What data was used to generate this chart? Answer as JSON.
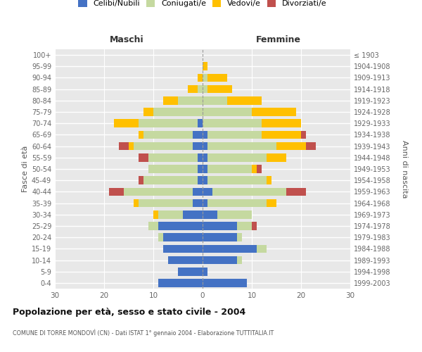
{
  "age_groups": [
    "0-4",
    "5-9",
    "10-14",
    "15-19",
    "20-24",
    "25-29",
    "30-34",
    "35-39",
    "40-44",
    "45-49",
    "50-54",
    "55-59",
    "60-64",
    "65-69",
    "70-74",
    "75-79",
    "80-84",
    "85-89",
    "90-94",
    "95-99",
    "100+"
  ],
  "birth_years": [
    "1999-2003",
    "1994-1998",
    "1989-1993",
    "1984-1988",
    "1979-1983",
    "1974-1978",
    "1969-1973",
    "1964-1968",
    "1959-1963",
    "1954-1958",
    "1949-1953",
    "1944-1948",
    "1939-1943",
    "1934-1938",
    "1929-1933",
    "1924-1928",
    "1919-1923",
    "1914-1918",
    "1909-1913",
    "1904-1908",
    "≤ 1903"
  ],
  "males": {
    "celibi": [
      9,
      5,
      7,
      8,
      8,
      9,
      4,
      2,
      2,
      1,
      1,
      1,
      2,
      2,
      1,
      0,
      0,
      0,
      0,
      0,
      0
    ],
    "coniugati": [
      0,
      0,
      0,
      0,
      1,
      2,
      5,
      11,
      14,
      11,
      10,
      10,
      12,
      10,
      12,
      10,
      5,
      1,
      0,
      0,
      0
    ],
    "vedovi": [
      0,
      0,
      0,
      0,
      0,
      0,
      1,
      1,
      0,
      0,
      0,
      0,
      1,
      1,
      5,
      2,
      3,
      2,
      1,
      0,
      0
    ],
    "divorziati": [
      0,
      0,
      0,
      0,
      0,
      0,
      0,
      0,
      3,
      1,
      0,
      2,
      2,
      0,
      0,
      0,
      0,
      0,
      0,
      0,
      0
    ]
  },
  "females": {
    "nubili": [
      9,
      1,
      7,
      11,
      7,
      7,
      3,
      1,
      2,
      1,
      1,
      1,
      1,
      1,
      0,
      0,
      0,
      0,
      0,
      0,
      0
    ],
    "coniugate": [
      0,
      0,
      1,
      2,
      1,
      3,
      7,
      12,
      15,
      12,
      9,
      12,
      14,
      11,
      12,
      10,
      5,
      1,
      1,
      0,
      0
    ],
    "vedove": [
      0,
      0,
      0,
      0,
      0,
      0,
      0,
      2,
      0,
      1,
      1,
      4,
      6,
      8,
      8,
      9,
      7,
      5,
      4,
      1,
      0
    ],
    "divorziate": [
      0,
      0,
      0,
      0,
      0,
      1,
      0,
      0,
      4,
      0,
      1,
      0,
      2,
      1,
      0,
      0,
      0,
      0,
      0,
      0,
      0
    ]
  },
  "colors": {
    "celibi": "#4472c4",
    "coniugati": "#c5d9a0",
    "vedovi": "#ffc000",
    "divorziati": "#c0504d"
  },
  "title": "Popolazione per età, sesso e stato civile - 2004",
  "subtitle": "COMUNE DI TORRE MONDOVÌ (CN) - Dati ISTAT 1° gennaio 2004 - Elaborazione TUTTITALIA.IT",
  "xlabel_left": "Maschi",
  "xlabel_right": "Femmine",
  "ylabel_left": "Fasce di età",
  "ylabel_right": "Anni di nascita",
  "xlim": 30,
  "legend_labels": [
    "Celibi/Nubili",
    "Coniugati/e",
    "Vedovi/e",
    "Divorziati/e"
  ]
}
